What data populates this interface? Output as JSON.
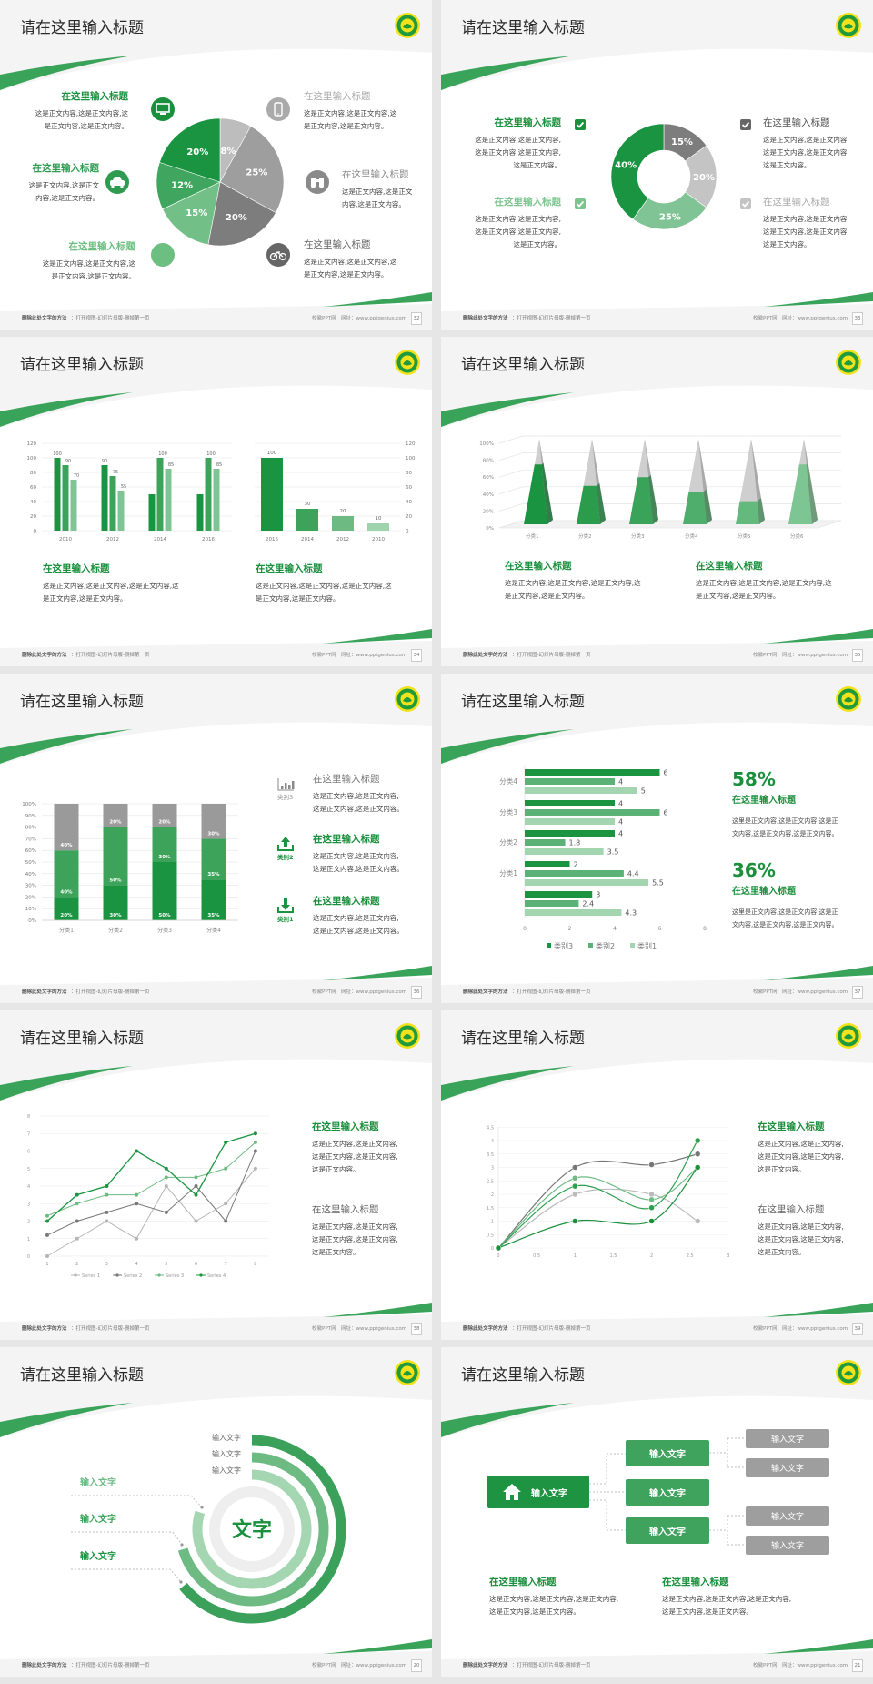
{
  "common": {
    "slide_title": "请在这里输入标题",
    "footer_bold": "删除此处文字的方法",
    "footer_rest": "：打开视图-幻灯片母版-删掉第一页",
    "footer_site": "校徽PPT网",
    "footer_url": "网址：www.pptgenius.com",
    "colors": {
      "dark_green": "#1a9440",
      "mid_green": "#3da35a",
      "light_green": "#80c495",
      "gray": "#9e9e9e",
      "logo_yellow": "#f3e21b"
    }
  },
  "slides": [
    {
      "page": "32",
      "items": [
        {
          "title": "在这里输入标题",
          "icon": "monitor-icon",
          "lines": [
            "这是正文内容,这是正文内容,这",
            "是正文内容,这是正文内容。"
          ]
        },
        {
          "title": "在这里输入标题",
          "icon": "car-icon",
          "lines": [
            "这是正文内容,这是正文",
            "内容,这是正文内容。"
          ]
        },
        {
          "title": "在这里输入标题",
          "icon": "book-icon",
          "lines": [
            "这是正文内容,这是正文内容,这",
            "是正文内容,这是正文内容。"
          ]
        },
        {
          "title": "在这里输入标题",
          "icon": "phone-icon",
          "lines": [
            "这是正文内容,这是正文内容,这",
            "是正文内容,这是正文内容。"
          ]
        },
        {
          "title": "在这里输入标题",
          "icon": "binoculars-icon",
          "lines": [
            "这是正文内容,这是正文",
            "内容,这是正文内容。"
          ]
        },
        {
          "title": "在这里输入标题",
          "icon": "bicycle-icon",
          "lines": [
            "这是正文内容,这是正文内容,这",
            "是正文内容,这是正文内容。"
          ]
        }
      ]
    },
    {
      "page": "33",
      "items": [
        {
          "title": "在这里输入标题",
          "lines": [
            "这是正文内容,这是正文内容,",
            "这是正文内容,这是正文内容,",
            "这是正文内容。"
          ]
        },
        {
          "title": "在这里输入标题",
          "lines": [
            "这是正文内容,这是正文内容,",
            "这是正文内容,这是正文内容,",
            "这是正文内容。"
          ]
        },
        {
          "title": "在这里输入标题",
          "lines": [
            "这是正文内容,这是正文内容,",
            "这是正文内容,这是正文内容,",
            "这是正文内容。"
          ]
        },
        {
          "title": "在这里输入标题",
          "lines": [
            "这是正文内容,这是正文内容,",
            "这是正文内容,这是正文内容,",
            "这是正文内容。"
          ]
        }
      ]
    },
    {
      "page": "34",
      "blocks": [
        {
          "title": "在这里输入标题",
          "lines": [
            "这是正文内容,这是正文内容,这是正文内容,这",
            "是正文内容,这是正文内容。"
          ]
        },
        {
          "title": "在这里输入标题",
          "lines": [
            "这是正文内容,这是正文内容,这是正文内容,这",
            "是正文内容,这是正文内容。"
          ]
        }
      ]
    },
    {
      "page": "35",
      "blocks": [
        {
          "title": "在这里输入标题",
          "lines": [
            "这是正文内容,这是正文内容,这是正文内容,这",
            "是正文内容,这是正文内容。"
          ]
        },
        {
          "title": "在这里输入标题",
          "lines": [
            "这是正文内容,这是正文内容,这是正文内容,这",
            "是正文内容,这是正文内容。"
          ]
        }
      ]
    },
    {
      "page": "36",
      "items": [
        {
          "category": "类别3",
          "icon": "bar-chart-icon",
          "title": "在这里输入标题",
          "lines": [
            "这是正文内容,这是正文内容,",
            "这是正文内容,这是正文内容。"
          ]
        },
        {
          "category": "类别2",
          "icon": "upload-icon",
          "title": "在这里输入标题",
          "lines": [
            "这是正文内容,这是正文内容,",
            "这是正文内容,这是正文内容。"
          ]
        },
        {
          "category": "类别1",
          "icon": "download-icon",
          "title": "在这里输入标题",
          "lines": [
            "这是正文内容,这是正文内容,",
            "这是正文内容,这是正文内容。"
          ]
        }
      ]
    },
    {
      "page": "37",
      "stats": [
        {
          "value": "58%",
          "title": "在这里输入标题",
          "lines": [
            "这里是正文内容,这是正文内容,这是正",
            "文内容,这是正文内容,这是正文内容。"
          ]
        },
        {
          "value": "36%",
          "title": "在这里输入标题",
          "lines": [
            "这里是正文内容,这是正文内容,这是正",
            "文内容,这是正文内容,这是正文内容。"
          ]
        }
      ]
    },
    {
      "page": "38",
      "blocks": [
        {
          "title": "在这里输入标题",
          "lines": [
            "这是正文内容,这是正文内容,",
            "这是正文内容,这是正文内容,",
            "这是正文内容。"
          ]
        },
        {
          "title": "在这里输入标题",
          "lines": [
            "这是正文内容,这是正文内容,",
            "这是正文内容,这是正文内容,",
            "这是正文内容。"
          ]
        }
      ]
    },
    {
      "page": "39",
      "blocks": [
        {
          "title": "在这里输入标题",
          "lines": [
            "这是正文内容,这是正文内容,",
            "这是正文内容,这是正文内容,",
            "这是正文内容。"
          ]
        },
        {
          "title": "在这里输入标题",
          "lines": [
            "这是正文内容,这是正文内容,",
            "这是正文内容,这是正文内容,",
            "这是正文内容。"
          ]
        }
      ]
    },
    {
      "page": "20",
      "center": "文字",
      "top_labels": [
        "输入文字",
        "输入文字",
        "输入文字"
      ],
      "left_labels": [
        "输入文字",
        "输入文字",
        "输入文字"
      ]
    },
    {
      "page": "21",
      "root": "输入文字",
      "branches": [
        "输入文字",
        "输入文字",
        "输入文字"
      ],
      "leaves": [
        "输入文字",
        "输入文字",
        "输入文字",
        "输入文字"
      ],
      "blocks": [
        {
          "title": "在这里输入标题",
          "lines": [
            "这是正文内容,这是正文内容,这是正文内容,",
            "这是正文内容,这是正文内容。"
          ]
        },
        {
          "title": "在这里输入标题",
          "lines": [
            "这是正文内容,这是正文内容,这是正文内容,",
            "这是正文内容,这是正文内容。"
          ]
        }
      ]
    }
  ],
  "chart_data": [
    {
      "type": "pie",
      "values": [
        8,
        25,
        20,
        15,
        12,
        20
      ],
      "labels": [
        "8%",
        "25%",
        "20%",
        "15%",
        "12%",
        "20%"
      ],
      "colors": [
        "#bdbdbd",
        "#9e9e9e",
        "#7d7d7d",
        "#72c088",
        "#40a55e",
        "#1a9440"
      ]
    },
    {
      "type": "pie",
      "donut": true,
      "values": [
        15,
        20,
        25,
        40
      ],
      "labels": [
        "15%",
        "20%",
        "25%",
        "40%"
      ],
      "colors": [
        "#7d7d7d",
        "#c4c4c4",
        "#80c495",
        "#1a9440"
      ]
    },
    {
      "type": "bar",
      "categories": [
        "2010",
        "2012",
        "2014",
        "2016"
      ],
      "series": [
        {
          "values": [
            100,
            90,
            50,
            50
          ],
          "labels": [
            "100",
            "90",
            "",
            ""
          ]
        },
        {
          "values": [
            90,
            75,
            100,
            100
          ],
          "labels": [
            "90",
            "75",
            "100",
            "100"
          ]
        },
        {
          "values": [
            70,
            55,
            85,
            85
          ],
          "labels": [
            "70",
            "55",
            "85",
            "85"
          ]
        }
      ],
      "ylim": [
        0,
        120
      ],
      "yticks": [
        "0",
        "20",
        "40",
        "60",
        "80",
        "100",
        "120"
      ],
      "grid": true,
      "colors": [
        "#1a9440",
        "#3da35a",
        "#80c495"
      ]
    },
    {
      "type": "bar",
      "categories": [
        "2016",
        "2014",
        "2012",
        "2010"
      ],
      "values": [
        100,
        30,
        20,
        10
      ],
      "labels": [
        "100",
        "30",
        "20",
        "10"
      ],
      "ylim": [
        0,
        120
      ],
      "yticks": [
        "0",
        "20",
        "40",
        "60",
        "80",
        "100",
        "120"
      ],
      "y_axis": "right",
      "grid": true,
      "colors": [
        "#1a9440",
        "#3da35a",
        "#6dbb83",
        "#9fd3ad"
      ]
    },
    {
      "type": "bar",
      "style": "3d-pyramid",
      "categories": [
        "分类1",
        "分类2",
        "分类3",
        "分类4",
        "分类5",
        "分类6"
      ],
      "values": [
        70,
        45,
        55,
        38,
        27,
        70
      ],
      "ylim": [
        0,
        100
      ],
      "yticks": [
        "0%",
        "20%",
        "40%",
        "60%",
        "80%",
        "100%"
      ],
      "grid": true
    },
    {
      "type": "bar",
      "stacked": "percent",
      "categories": [
        "分类1",
        "分类2",
        "分类3",
        "分类4"
      ],
      "series": [
        {
          "name": "类别1",
          "values": [
            20,
            30,
            50,
            35
          ],
          "labels": [
            "20%",
            "30%",
            "50%",
            "35%"
          ]
        },
        {
          "name": "类别2",
          "values": [
            40,
            50,
            30,
            35
          ],
          "labels": [
            "40%",
            "50%",
            "30%",
            "35%"
          ]
        },
        {
          "name": "类别3",
          "values": [
            40,
            20,
            20,
            30
          ],
          "labels": [
            "40%",
            "20%",
            "20%",
            "30%"
          ]
        }
      ],
      "yticks": [
        "0%",
        "10%",
        "20%",
        "30%",
        "40%",
        "50%",
        "60%",
        "70%",
        "80%",
        "90%",
        "100%"
      ],
      "grid": true,
      "colors": [
        "#1a9440",
        "#3da35a",
        "#9a9a9a"
      ]
    },
    {
      "type": "bar",
      "orientation": "horizontal",
      "categories": [
        "",
        "分类1",
        "分类2",
        "分类3",
        "分类4"
      ],
      "series": [
        {
          "name": "类别3",
          "values": [
            3,
            2,
            4,
            4,
            6
          ],
          "labels": [
            "3",
            "2",
            "4",
            "4",
            "6"
          ]
        },
        {
          "name": "类别2",
          "values": [
            2.4,
            4.4,
            1.8,
            6,
            4
          ],
          "labels": [
            "2.4",
            "4.4",
            "1.8",
            "6",
            "4"
          ]
        },
        {
          "name": "类别1",
          "values": [
            4.3,
            5.5,
            3.5,
            4,
            5
          ],
          "labels": [
            "4.3",
            "5.5",
            "3.5",
            "4",
            "5"
          ]
        }
      ],
      "xlim": [
        0,
        8
      ],
      "xticks": [
        "0",
        "2",
        "4",
        "6",
        "8"
      ],
      "legend": "bottom",
      "colors": [
        "#1a9440",
        "#5cb276",
        "#a3d5b0"
      ]
    },
    {
      "type": "line",
      "x": [
        "1",
        "2",
        "3",
        "4",
        "5",
        "6",
        "7",
        "8"
      ],
      "ylim": [
        0,
        8
      ],
      "yticks": [
        "0",
        "1",
        "2",
        "3",
        "4",
        "5",
        "6",
        "7",
        "8"
      ],
      "series": [
        {
          "name": "Series 1",
          "values": [
            0,
            1,
            2,
            1,
            4,
            2,
            3,
            5
          ]
        },
        {
          "name": "Series 2",
          "values": [
            1.2,
            2,
            2.5,
            3,
            2.5,
            4,
            2,
            6
          ]
        },
        {
          "name": "Series 3",
          "values": [
            2.3,
            3,
            3.5,
            3.5,
            4.5,
            4.5,
            5,
            6.5
          ]
        },
        {
          "name": "Series 4",
          "values": [
            2,
            3.5,
            4,
            6,
            5,
            3.5,
            6.5,
            7
          ]
        }
      ],
      "legend": "bottom",
      "grid": true,
      "colors": [
        "#b5b5b5",
        "#777777",
        "#6dbb83",
        "#1a9440"
      ]
    },
    {
      "type": "line",
      "smooth": true,
      "x": [
        0,
        1,
        2,
        2.6
      ],
      "xlim": [
        0,
        3
      ],
      "ylim": [
        0,
        4.5
      ],
      "xticks": [
        "0",
        "0.5",
        "1",
        "1.5",
        "2",
        "2.5",
        "3"
      ],
      "yticks": [
        "0",
        "0.5",
        "1",
        "1.5",
        "2",
        "2.5",
        "3",
        "3.5",
        "4",
        "4.5"
      ],
      "series": [
        {
          "values": [
            0,
            3,
            3.1,
            3.5
          ]
        },
        {
          "values": [
            0,
            2,
            2,
            1
          ]
        },
        {
          "values": [
            0,
            2.6,
            1.8,
            3
          ]
        },
        {
          "values": [
            0,
            2.3,
            1.5,
            4
          ]
        },
        {
          "values": [
            0,
            1,
            1,
            3
          ]
        }
      ],
      "grid": true,
      "colors": [
        "#777777",
        "#bbbbbb",
        "#6dbb83",
        "#2e9e4f",
        "#1a8f3c"
      ]
    }
  ]
}
